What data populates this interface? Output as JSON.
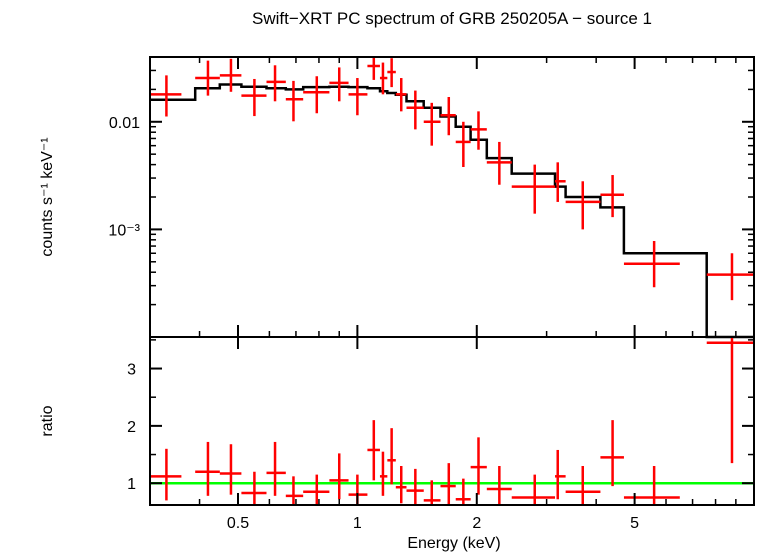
{
  "chart_data": [
    {
      "type": "scatter",
      "title": "Swift−XRT PC spectrum of GRB 250205A − source 1",
      "ylabel": "counts s⁻¹ keV⁻¹",
      "xscale": "log",
      "yscale": "log",
      "xlim": [
        0.3,
        10
      ],
      "ylim": [
        0.0001,
        0.04
      ],
      "yticks": [
        {
          "value": 0.01,
          "label": "0.01"
        },
        {
          "value": 0.001,
          "label": "10⁻³"
        }
      ],
      "grid": false,
      "series": [
        {
          "kind": "data",
          "color": "#ff0000",
          "points": [
            {
              "x": 0.33,
              "xlo": 0.3,
              "xhi": 0.36,
              "y": 0.018,
              "ylo": 0.0112,
              "yhi": 0.027
            },
            {
              "x": 0.42,
              "xlo": 0.39,
              "xhi": 0.45,
              "y": 0.0255,
              "ylo": 0.0175,
              "yhi": 0.037
            },
            {
              "x": 0.48,
              "xlo": 0.45,
              "xhi": 0.51,
              "y": 0.027,
              "ylo": 0.019,
              "yhi": 0.0385
            },
            {
              "x": 0.55,
              "xlo": 0.51,
              "xhi": 0.59,
              "y": 0.0175,
              "ylo": 0.0113,
              "yhi": 0.025
            },
            {
              "x": 0.62,
              "xlo": 0.59,
              "xhi": 0.66,
              "y": 0.0235,
              "ylo": 0.0155,
              "yhi": 0.0335
            },
            {
              "x": 0.69,
              "xlo": 0.66,
              "xhi": 0.73,
              "y": 0.0162,
              "ylo": 0.0101,
              "yhi": 0.024
            },
            {
              "x": 0.79,
              "xlo": 0.73,
              "xhi": 0.85,
              "y": 0.0188,
              "ylo": 0.012,
              "yhi": 0.0265
            },
            {
              "x": 0.9,
              "xlo": 0.85,
              "xhi": 0.95,
              "y": 0.023,
              "ylo": 0.0155,
              "yhi": 0.032
            },
            {
              "x": 1.0,
              "xlo": 0.95,
              "xhi": 1.06,
              "y": 0.018,
              "ylo": 0.0115,
              "yhi": 0.0255
            },
            {
              "x": 1.1,
              "xlo": 1.06,
              "xhi": 1.14,
              "y": 0.033,
              "ylo": 0.0245,
              "yhi": 0.043
            },
            {
              "x": 1.16,
              "xlo": 1.14,
              "xhi": 1.19,
              "y": 0.0255,
              "ylo": 0.018,
              "yhi": 0.0355
            },
            {
              "x": 1.22,
              "xlo": 1.19,
              "xhi": 1.25,
              "y": 0.029,
              "ylo": 0.021,
              "yhi": 0.039
            },
            {
              "x": 1.29,
              "xlo": 1.25,
              "xhi": 1.33,
              "y": 0.018,
              "ylo": 0.0125,
              "yhi": 0.0255
            },
            {
              "x": 1.4,
              "xlo": 1.33,
              "xhi": 1.47,
              "y": 0.0135,
              "ylo": 0.0085,
              "yhi": 0.0195
            },
            {
              "x": 1.54,
              "xlo": 1.47,
              "xhi": 1.62,
              "y": 0.01,
              "ylo": 0.006,
              "yhi": 0.015
            },
            {
              "x": 1.7,
              "xlo": 1.62,
              "xhi": 1.77,
              "y": 0.0115,
              "ylo": 0.0075,
              "yhi": 0.017
            },
            {
              "x": 1.85,
              "xlo": 1.77,
              "xhi": 1.93,
              "y": 0.0065,
              "ylo": 0.0038,
              "yhi": 0.01
            },
            {
              "x": 2.02,
              "xlo": 1.93,
              "xhi": 2.12,
              "y": 0.0085,
              "ylo": 0.0055,
              "yhi": 0.0125
            },
            {
              "x": 2.28,
              "xlo": 2.12,
              "xhi": 2.45,
              "y": 0.0042,
              "ylo": 0.0026,
              "yhi": 0.0065
            },
            {
              "x": 2.8,
              "xlo": 2.45,
              "xhi": 3.15,
              "y": 0.0025,
              "ylo": 0.0014,
              "yhi": 0.004
            },
            {
              "x": 3.2,
              "xlo": 3.15,
              "xhi": 3.35,
              "y": 0.0028,
              "ylo": 0.0018,
              "yhi": 0.0042
            },
            {
              "x": 3.7,
              "xlo": 3.35,
              "xhi": 4.1,
              "y": 0.0018,
              "ylo": 0.001,
              "yhi": 0.0028
            },
            {
              "x": 4.4,
              "xlo": 4.1,
              "xhi": 4.7,
              "y": 0.0021,
              "ylo": 0.0013,
              "yhi": 0.0032
            },
            {
              "x": 5.6,
              "xlo": 4.7,
              "xhi": 6.5,
              "y": 0.00048,
              "ylo": 0.00029,
              "yhi": 0.00078
            },
            {
              "x": 8.8,
              "xlo": 7.6,
              "xhi": 10.0,
              "y": 0.00038,
              "ylo": 0.00022,
              "yhi": 0.0006
            }
          ]
        },
        {
          "kind": "model",
          "color": "#000000",
          "steps": [
            {
              "x": 0.3,
              "y": 0.016
            },
            {
              "x": 0.39,
              "y": 0.0205
            },
            {
              "x": 0.45,
              "y": 0.0222
            },
            {
              "x": 0.51,
              "y": 0.0212
            },
            {
              "x": 0.59,
              "y": 0.0205
            },
            {
              "x": 0.66,
              "y": 0.02
            },
            {
              "x": 0.73,
              "y": 0.021
            },
            {
              "x": 0.85,
              "y": 0.0212
            },
            {
              "x": 0.95,
              "y": 0.021
            },
            {
              "x": 1.06,
              "y": 0.0205
            },
            {
              "x": 1.14,
              "y": 0.0192
            },
            {
              "x": 1.19,
              "y": 0.0185
            },
            {
              "x": 1.25,
              "y": 0.0178
            },
            {
              "x": 1.33,
              "y": 0.0155
            },
            {
              "x": 1.47,
              "y": 0.0135
            },
            {
              "x": 1.62,
              "y": 0.0112
            },
            {
              "x": 1.77,
              "y": 0.009
            },
            {
              "x": 1.93,
              "y": 0.0068
            },
            {
              "x": 2.12,
              "y": 0.0046
            },
            {
              "x": 2.45,
              "y": 0.0033
            },
            {
              "x": 3.15,
              "y": 0.0025
            },
            {
              "x": 3.35,
              "y": 0.002
            },
            {
              "x": 4.1,
              "y": 0.0016
            },
            {
              "x": 4.7,
              "y": 0.0006
            },
            {
              "x": 7.6,
              "y": 9.5e-05
            },
            {
              "x": 10.0,
              "y": 9.5e-05
            }
          ]
        }
      ]
    },
    {
      "type": "scatter",
      "xlabel": "Energy (keV)",
      "ylabel": "ratio",
      "xscale": "log",
      "xlim": [
        0.3,
        10
      ],
      "ylim": [
        0.62,
        3.55
      ],
      "xticks": [
        {
          "value": 0.5,
          "label": "0.5"
        },
        {
          "value": 1,
          "label": "1"
        },
        {
          "value": 2,
          "label": "2"
        },
        {
          "value": 5,
          "label": "5"
        }
      ],
      "yticks": [
        {
          "value": 1,
          "label": "1"
        },
        {
          "value": 2,
          "label": "2"
        },
        {
          "value": 3,
          "label": "3"
        }
      ],
      "reference_line": {
        "y": 1,
        "color": "#00ff00"
      },
      "series": [
        {
          "kind": "ratio",
          "color": "#ff0000",
          "points": [
            {
              "x": 0.33,
              "xlo": 0.3,
              "xhi": 0.36,
              "y": 1.12,
              "ylo": 0.7,
              "yhi": 1.6
            },
            {
              "x": 0.42,
              "xlo": 0.39,
              "xhi": 0.45,
              "y": 1.2,
              "ylo": 0.78,
              "yhi": 1.72
            },
            {
              "x": 0.48,
              "xlo": 0.45,
              "xhi": 0.51,
              "y": 1.17,
              "ylo": 0.8,
              "yhi": 1.68
            },
            {
              "x": 0.55,
              "xlo": 0.51,
              "xhi": 0.59,
              "y": 0.83,
              "ylo": 0.62,
              "yhi": 1.2
            },
            {
              "x": 0.62,
              "xlo": 0.59,
              "xhi": 0.66,
              "y": 1.18,
              "ylo": 0.78,
              "yhi": 1.72
            },
            {
              "x": 0.69,
              "xlo": 0.66,
              "xhi": 0.73,
              "y": 0.78,
              "ylo": 0.62,
              "yhi": 1.12
            },
            {
              "x": 0.79,
              "xlo": 0.73,
              "xhi": 0.85,
              "y": 0.85,
              "ylo": 0.62,
              "yhi": 1.15
            },
            {
              "x": 0.9,
              "xlo": 0.85,
              "xhi": 0.95,
              "y": 1.05,
              "ylo": 0.72,
              "yhi": 1.52
            },
            {
              "x": 1.0,
              "xlo": 0.95,
              "xhi": 1.06,
              "y": 0.8,
              "ylo": 0.62,
              "yhi": 1.15
            },
            {
              "x": 1.1,
              "xlo": 1.06,
              "xhi": 1.14,
              "y": 1.58,
              "ylo": 1.05,
              "yhi": 2.1
            },
            {
              "x": 1.16,
              "xlo": 1.14,
              "xhi": 1.19,
              "y": 1.12,
              "ylo": 0.78,
              "yhi": 1.55
            },
            {
              "x": 1.22,
              "xlo": 1.19,
              "xhi": 1.25,
              "y": 1.4,
              "ylo": 0.98,
              "yhi": 1.96
            },
            {
              "x": 1.29,
              "xlo": 1.25,
              "xhi": 1.33,
              "y": 0.93,
              "ylo": 0.65,
              "yhi": 1.3
            },
            {
              "x": 1.4,
              "xlo": 1.33,
              "xhi": 1.47,
              "y": 0.87,
              "ylo": 0.62,
              "yhi": 1.25
            },
            {
              "x": 1.54,
              "xlo": 1.47,
              "xhi": 1.62,
              "y": 0.7,
              "ylo": 0.62,
              "yhi": 1.05
            },
            {
              "x": 1.7,
              "xlo": 1.62,
              "xhi": 1.77,
              "y": 0.95,
              "ylo": 0.62,
              "yhi": 1.35
            },
            {
              "x": 1.85,
              "xlo": 1.77,
              "xhi": 1.93,
              "y": 0.72,
              "ylo": 0.62,
              "yhi": 1.08
            },
            {
              "x": 2.02,
              "xlo": 1.93,
              "xhi": 2.12,
              "y": 1.28,
              "ylo": 0.8,
              "yhi": 1.8
            },
            {
              "x": 2.28,
              "xlo": 2.12,
              "xhi": 2.45,
              "y": 0.9,
              "ylo": 0.62,
              "yhi": 1.3
            },
            {
              "x": 2.8,
              "xlo": 2.45,
              "xhi": 3.15,
              "y": 0.75,
              "ylo": 0.62,
              "yhi": 1.15
            },
            {
              "x": 3.2,
              "xlo": 3.15,
              "xhi": 3.35,
              "y": 1.12,
              "ylo": 0.72,
              "yhi": 1.58
            },
            {
              "x": 3.7,
              "xlo": 3.35,
              "xhi": 4.1,
              "y": 0.85,
              "ylo": 0.62,
              "yhi": 1.3
            },
            {
              "x": 4.4,
              "xlo": 4.1,
              "xhi": 4.7,
              "y": 1.45,
              "ylo": 0.95,
              "yhi": 2.1
            },
            {
              "x": 5.6,
              "xlo": 4.7,
              "xhi": 6.5,
              "y": 0.75,
              "ylo": 0.62,
              "yhi": 1.3
            },
            {
              "x": 8.8,
              "xlo": 7.6,
              "xhi": 10.0,
              "y": 3.45,
              "ylo": 1.35,
              "yhi": 3.55
            }
          ]
        }
      ]
    }
  ]
}
